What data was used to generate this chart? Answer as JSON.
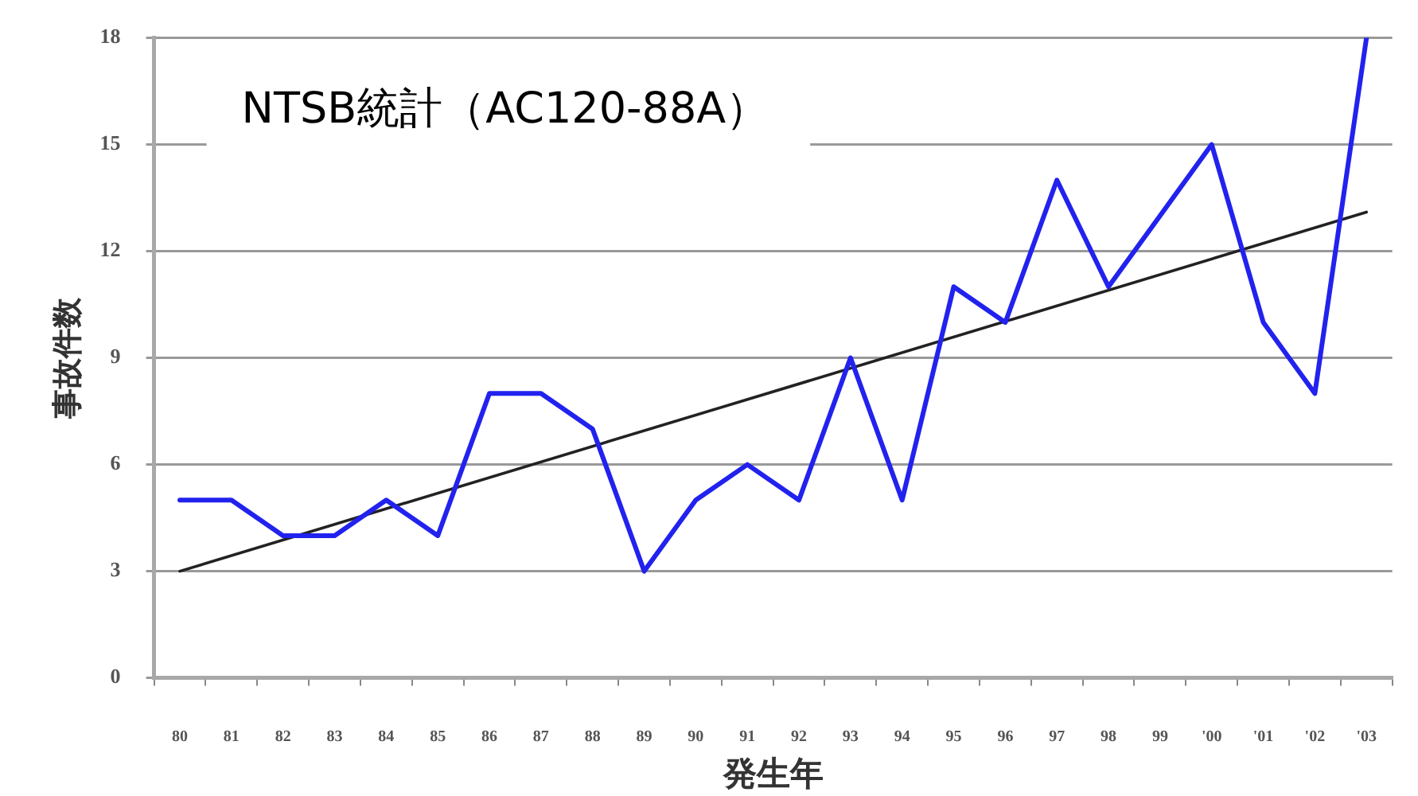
{
  "chart_data": {
    "type": "line",
    "ylabel": "事故件数",
    "xlabel": "発生年",
    "annotations": [
      "NTSB統計（AC120-88A）"
    ],
    "categories": [
      "80",
      "81",
      "82",
      "83",
      "84",
      "85",
      "86",
      "87",
      "88",
      "89",
      "90",
      "91",
      "92",
      "93",
      "94",
      "95",
      "96",
      "97",
      "98",
      "99",
      "'00",
      "'01",
      "'02",
      "'03"
    ],
    "series": [
      {
        "color": "#2222ee",
        "values": [
          5,
          5,
          4,
          4,
          5,
          4,
          8,
          8,
          7,
          3,
          5,
          6,
          5,
          9,
          5,
          11,
          10,
          14,
          11,
          13,
          15,
          10,
          8,
          18
        ]
      },
      {
        "type": "line",
        "color": "#222222",
        "x": [
          "80",
          "'03"
        ],
        "values": [
          3,
          13.1
        ]
      }
    ],
    "ylim": [
      0,
      18
    ],
    "yticks": [
      0,
      3,
      6,
      9,
      12,
      15,
      18
    ],
    "grid": "y",
    "marker": "none"
  }
}
